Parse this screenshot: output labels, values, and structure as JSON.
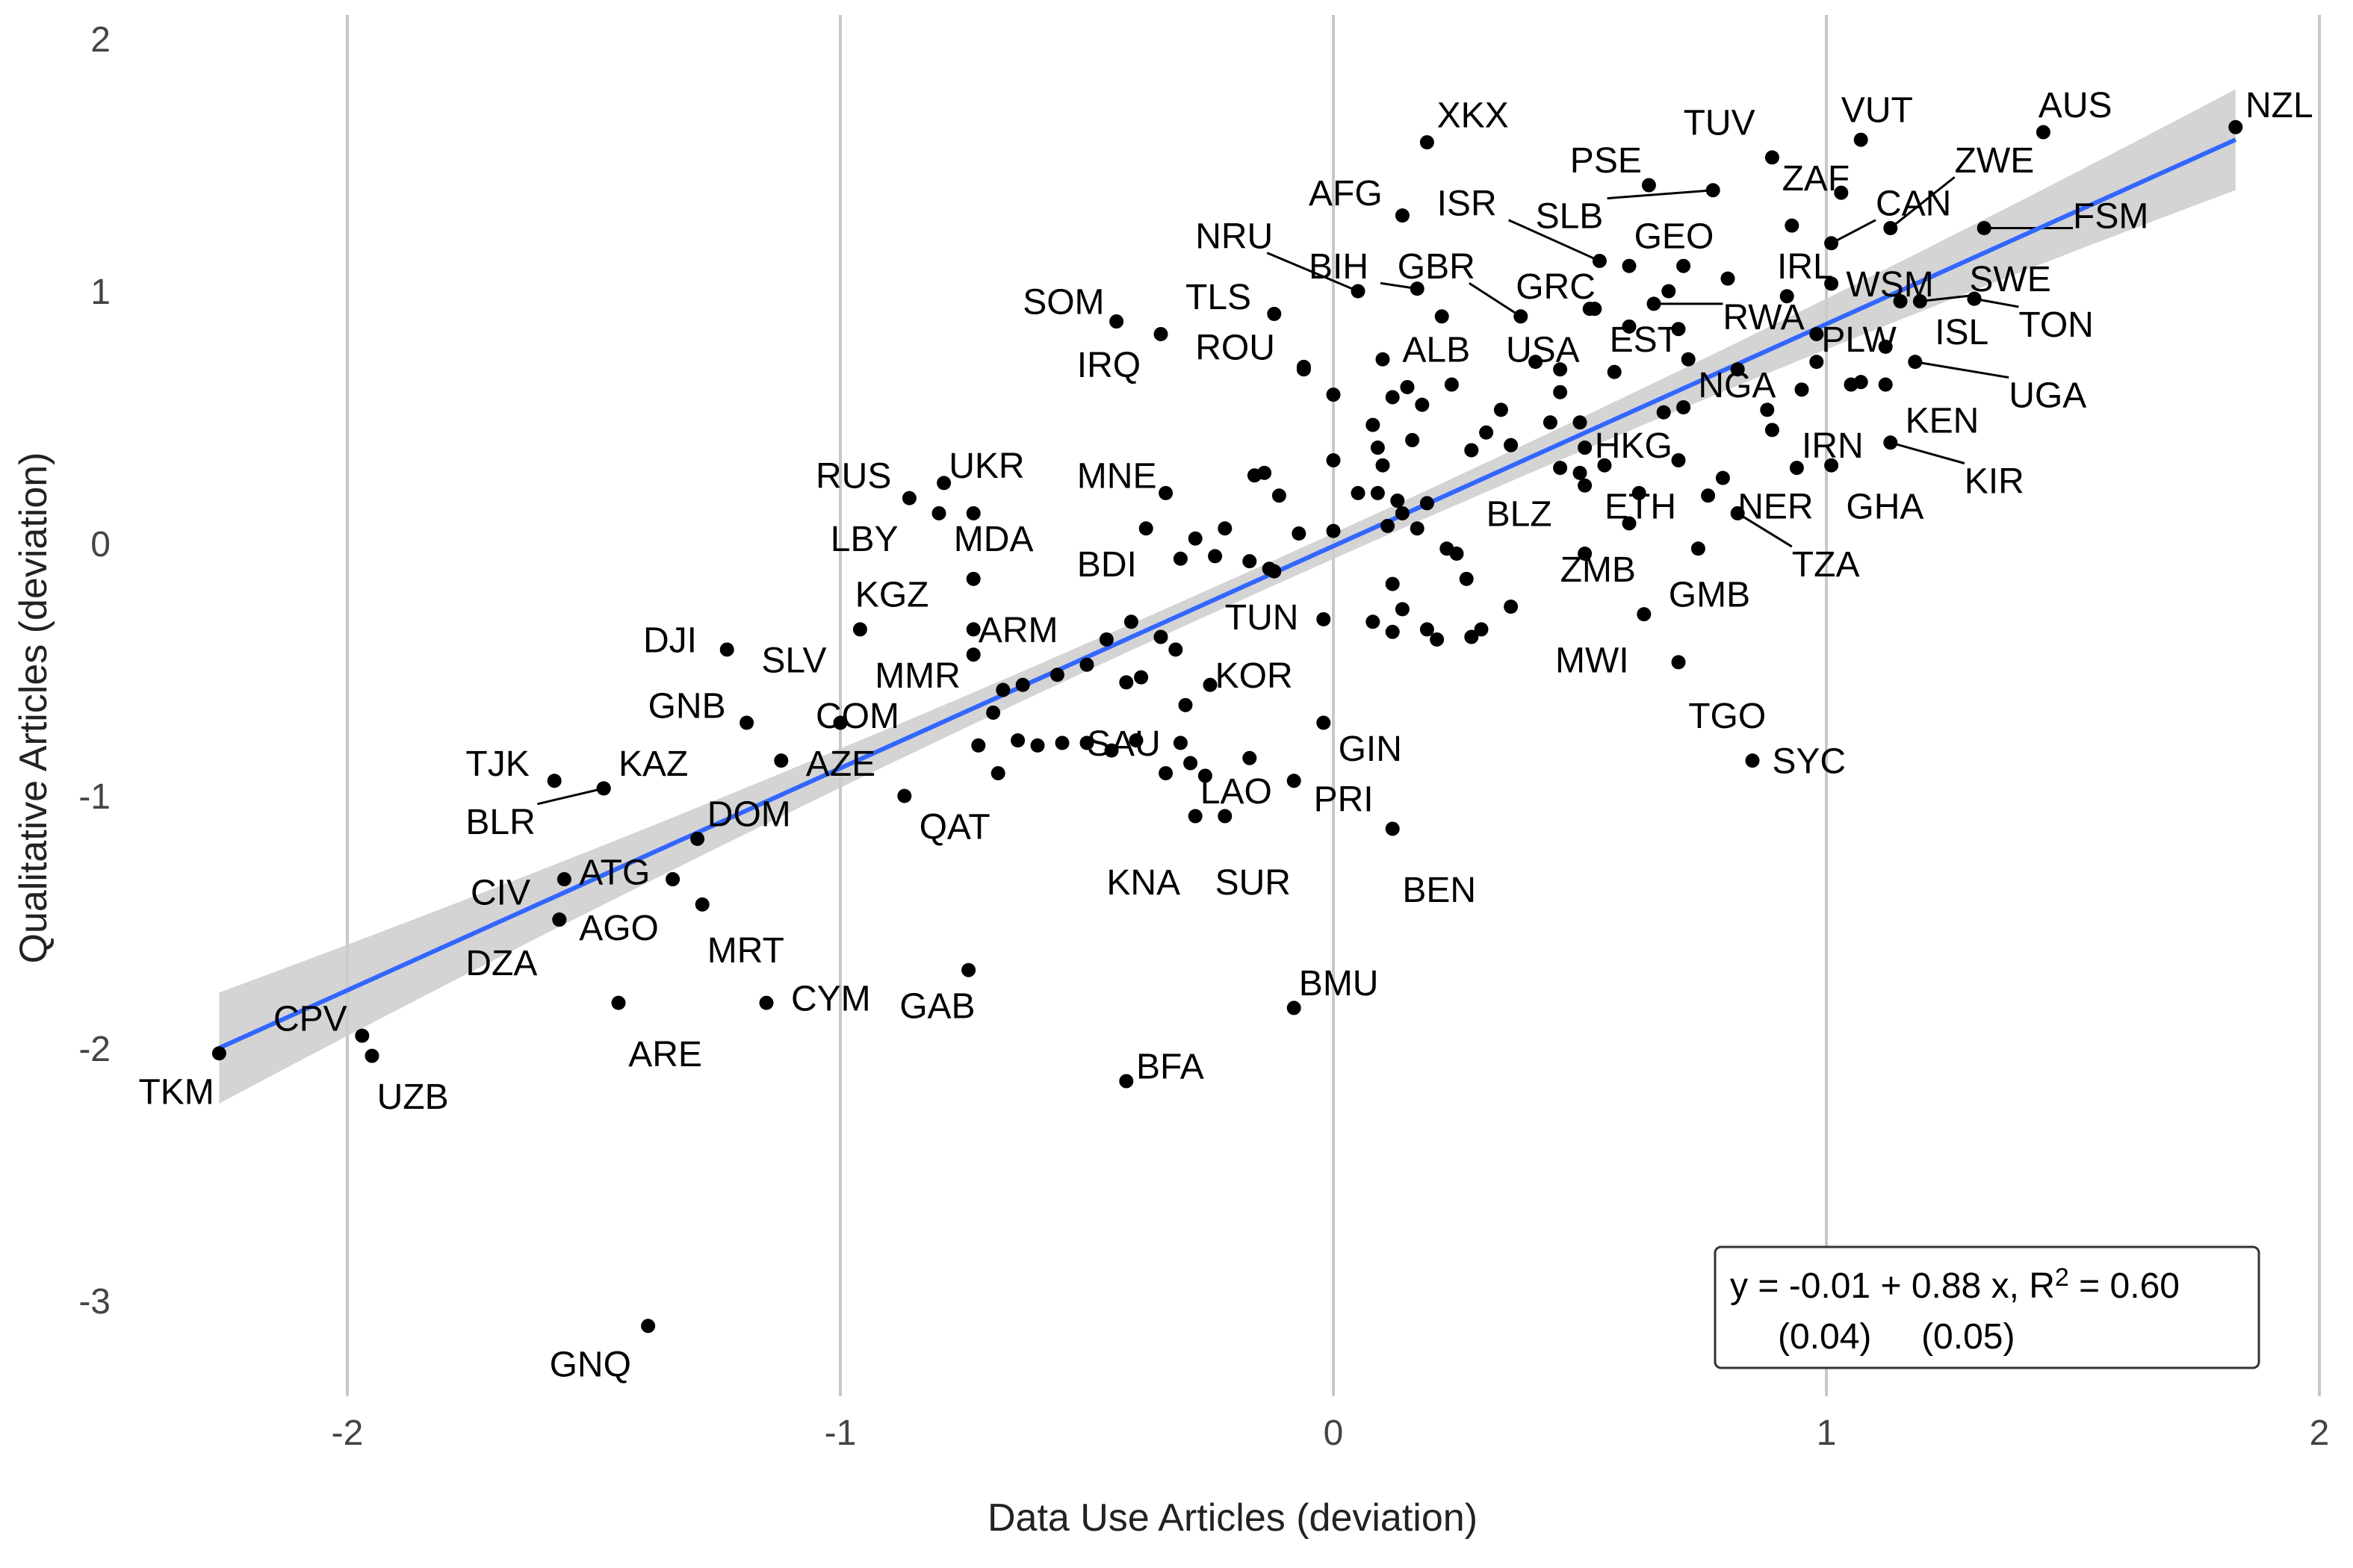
{
  "chart_data": {
    "type": "scatter",
    "xlabel": "Data Use Articles (deviation)",
    "ylabel": "Qualitative Articles (deviation)",
    "xlim": [
      -2.5,
      2.05
    ],
    "ylim": [
      -3.35,
      2.05
    ],
    "x_ticks": [
      -2,
      -1,
      0,
      1,
      2
    ],
    "y_ticks": [
      -3,
      -2,
      -1,
      0,
      1,
      2
    ],
    "x_tick_labels": [
      "-2",
      "-1",
      "0",
      "1",
      "2"
    ],
    "y_tick_labels": [
      "-3",
      "-2",
      "-1",
      "0",
      "1",
      "2"
    ],
    "grid": "vertical major",
    "fit": {
      "intercept": -0.01,
      "slope": 0.88,
      "x_range": [
        -2.26,
        1.83
      ],
      "line_color": "#3366ff",
      "band_color": "#cccccc",
      "band_halfwidth": [
        0.22,
        0.05,
        0.2
      ]
    },
    "annotation": {
      "line1_pre": "y = -0.01 + 0.88 x, R",
      "line1_sup": "2",
      "line1_post": " = 0.60",
      "line2": "(0.04)     (0.05)"
    },
    "point_color": "#000000",
    "labeled_points": [
      {
        "label": "NZL",
        "x": 1.83,
        "y": 1.65,
        "lx": 1.85,
        "ly": 1.74,
        "anchor": "start"
      },
      {
        "label": "AUS",
        "x": 1.44,
        "y": 1.63,
        "lx": 1.43,
        "ly": 1.74,
        "anchor": "start"
      },
      {
        "label": "VUT",
        "x": 1.07,
        "y": 1.6,
        "lx": 1.03,
        "ly": 1.72,
        "anchor": "start"
      },
      {
        "label": "TUV",
        "x": 0.89,
        "y": 1.53,
        "lx": 0.71,
        "ly": 1.67,
        "anchor": "start"
      },
      {
        "label": "XKX",
        "x": 0.19,
        "y": 1.59,
        "lx": 0.21,
        "ly": 1.7,
        "anchor": "start"
      },
      {
        "label": "PSE",
        "x": 0.64,
        "y": 1.42,
        "lx": 0.48,
        "ly": 1.52,
        "anchor": "start"
      },
      {
        "label": "ZAF",
        "x": 1.03,
        "y": 1.39,
        "lx": 0.91,
        "ly": 1.45,
        "anchor": "start"
      },
      {
        "label": "ZWE",
        "x": 1.13,
        "y": 1.25,
        "lx": 1.26,
        "ly": 1.52,
        "anchor": "start",
        "leader": true
      },
      {
        "label": "AFG",
        "x": 0.14,
        "y": 1.3,
        "lx": -0.05,
        "ly": 1.39,
        "anchor": "start"
      },
      {
        "label": "ISR",
        "x": 0.54,
        "y": 1.12,
        "lx": 0.21,
        "ly": 1.35,
        "anchor": "start",
        "leader": true
      },
      {
        "label": "SLB",
        "x": 0.77,
        "y": 1.4,
        "lx": 0.41,
        "ly": 1.3,
        "anchor": "start",
        "leader": true
      },
      {
        "label": "CAN",
        "x": 1.01,
        "y": 1.19,
        "lx": 1.1,
        "ly": 1.35,
        "anchor": "start",
        "leader": true
      },
      {
        "label": "FSM",
        "x": 1.32,
        "y": 1.25,
        "lx": 1.5,
        "ly": 1.3,
        "anchor": "start",
        "leader": true
      },
      {
        "label": "GEO",
        "x": 0.93,
        "y": 1.26,
        "lx": 0.61,
        "ly": 1.22,
        "anchor": "start"
      },
      {
        "label": "NRU",
        "x": 0.05,
        "y": 1.0,
        "lx": -0.28,
        "ly": 1.22,
        "anchor": "start",
        "leader": true
      },
      {
        "label": "IRL",
        "x": 1.01,
        "y": 1.03,
        "lx": 0.9,
        "ly": 1.1,
        "anchor": "start"
      },
      {
        "label": "BIH",
        "x": 0.17,
        "y": 1.01,
        "lx": -0.05,
        "ly": 1.1,
        "anchor": "start",
        "leader": true
      },
      {
        "label": "GBR",
        "x": 0.38,
        "y": 0.9,
        "lx": 0.13,
        "ly": 1.1,
        "anchor": "start",
        "leader": true
      },
      {
        "label": "WSM",
        "x": 1.15,
        "y": 0.96,
        "lx": 1.04,
        "ly": 1.03,
        "anchor": "start"
      },
      {
        "label": "SWE",
        "x": 1.19,
        "y": 0.96,
        "lx": 1.29,
        "ly": 1.05,
        "anchor": "start",
        "leader": true
      },
      {
        "label": "GRC",
        "x": 0.53,
        "y": 0.93,
        "lx": 0.37,
        "ly": 1.02,
        "anchor": "start"
      },
      {
        "label": "SOM",
        "x": -0.44,
        "y": 0.88,
        "lx": -0.63,
        "ly": 0.96,
        "anchor": "start"
      },
      {
        "label": "TLS",
        "x": -0.12,
        "y": 0.91,
        "lx": -0.3,
        "ly": 0.98,
        "anchor": "start"
      },
      {
        "label": "RWA",
        "x": 0.65,
        "y": 0.95,
        "lx": 0.79,
        "ly": 0.9,
        "anchor": "start",
        "leader": true
      },
      {
        "label": "ISL",
        "x": 1.3,
        "y": 0.97,
        "lx": 1.22,
        "ly": 0.84,
        "anchor": "start"
      },
      {
        "label": "TON",
        "x": 1.3,
        "y": 0.97,
        "lx": 1.39,
        "ly": 0.87,
        "anchor": "start",
        "leader": true
      },
      {
        "label": "IRQ",
        "x": -0.35,
        "y": 0.83,
        "lx": -0.52,
        "ly": 0.71,
        "anchor": "start"
      },
      {
        "label": "ROU",
        "x": -0.06,
        "y": 0.69,
        "lx": -0.28,
        "ly": 0.78,
        "anchor": "start"
      },
      {
        "label": "ALB",
        "x": 0.1,
        "y": 0.73,
        "lx": 0.14,
        "ly": 0.77,
        "anchor": "start"
      },
      {
        "label": "USA",
        "x": 0.46,
        "y": 0.69,
        "lx": 0.35,
        "ly": 0.77,
        "anchor": "start"
      },
      {
        "label": "EST",
        "x": 0.72,
        "y": 0.73,
        "lx": 0.56,
        "ly": 0.81,
        "anchor": "start"
      },
      {
        "label": "PLW",
        "x": 1.12,
        "y": 0.78,
        "lx": 0.99,
        "ly": 0.81,
        "anchor": "start"
      },
      {
        "label": "UGA",
        "x": 1.18,
        "y": 0.72,
        "lx": 1.37,
        "ly": 0.59,
        "anchor": "start",
        "leader": true
      },
      {
        "label": "NGA",
        "x": 0.71,
        "y": 0.54,
        "lx": 0.74,
        "ly": 0.63,
        "anchor": "start"
      },
      {
        "label": "KEN",
        "x": 1.12,
        "y": 0.63,
        "lx": 1.16,
        "ly": 0.49,
        "anchor": "start"
      },
      {
        "label": "HKG",
        "x": 0.51,
        "y": 0.38,
        "lx": 0.53,
        "ly": 0.39,
        "anchor": "start"
      },
      {
        "label": "IRN",
        "x": 0.89,
        "y": 0.45,
        "lx": 0.95,
        "ly": 0.39,
        "anchor": "start"
      },
      {
        "label": "KIR",
        "x": 1.13,
        "y": 0.4,
        "lx": 1.28,
        "ly": 0.25,
        "anchor": "start",
        "leader": true
      },
      {
        "label": "RUS",
        "x": -0.86,
        "y": 0.18,
        "lx": -1.05,
        "ly": 0.27,
        "anchor": "start"
      },
      {
        "label": "UKR",
        "x": -0.79,
        "y": 0.24,
        "lx": -0.78,
        "ly": 0.31,
        "anchor": "start"
      },
      {
        "label": "MNE",
        "x": -0.34,
        "y": 0.2,
        "lx": -0.52,
        "ly": 0.27,
        "anchor": "start"
      },
      {
        "label": "BLZ",
        "x": 0.51,
        "y": 0.23,
        "lx": 0.31,
        "ly": 0.12,
        "anchor": "start"
      },
      {
        "label": "ETH",
        "x": 0.6,
        "y": 0.08,
        "lx": 0.55,
        "ly": 0.15,
        "anchor": "start"
      },
      {
        "label": "NER",
        "x": 0.79,
        "y": 0.26,
        "lx": 0.82,
        "ly": 0.15,
        "anchor": "start"
      },
      {
        "label": "GHA",
        "x": 1.01,
        "y": 0.31,
        "lx": 1.04,
        "ly": 0.15,
        "anchor": "start"
      },
      {
        "label": "LBY",
        "x": -0.8,
        "y": 0.12,
        "lx": -1.02,
        "ly": 0.02,
        "anchor": "start"
      },
      {
        "label": "MDA",
        "x": -0.73,
        "y": 0.12,
        "lx": -0.77,
        "ly": 0.02,
        "anchor": "start"
      },
      {
        "label": "TZA",
        "x": 0.82,
        "y": 0.12,
        "lx": 0.93,
        "ly": -0.08,
        "anchor": "start",
        "leader": true
      },
      {
        "label": "BDI",
        "x": -0.38,
        "y": 0.06,
        "lx": -0.52,
        "ly": -0.08,
        "anchor": "start"
      },
      {
        "label": "ZMB",
        "x": 0.51,
        "y": -0.04,
        "lx": 0.46,
        "ly": -0.1,
        "anchor": "start"
      },
      {
        "label": "KGZ",
        "x": -0.73,
        "y": -0.14,
        "lx": -0.97,
        "ly": -0.2,
        "anchor": "start"
      },
      {
        "label": "GMB",
        "x": 0.74,
        "y": -0.02,
        "lx": 0.68,
        "ly": -0.2,
        "anchor": "start"
      },
      {
        "label": "TUN",
        "x": -0.13,
        "y": -0.1,
        "lx": -0.22,
        "ly": -0.29,
        "anchor": "start"
      },
      {
        "label": "ARM",
        "x": -0.73,
        "y": -0.34,
        "lx": -0.72,
        "ly": -0.34,
        "anchor": "start"
      },
      {
        "label": "DJI",
        "x": -1.23,
        "y": -0.42,
        "lx": -1.4,
        "ly": -0.38,
        "anchor": "start"
      },
      {
        "label": "SLV",
        "x": -0.96,
        "y": -0.34,
        "lx": -1.16,
        "ly": -0.46,
        "anchor": "start"
      },
      {
        "label": "MWI",
        "x": 0.63,
        "y": -0.28,
        "lx": 0.45,
        "ly": -0.46,
        "anchor": "start"
      },
      {
        "label": "MMR",
        "x": -0.73,
        "y": -0.44,
        "lx": -0.93,
        "ly": -0.52,
        "anchor": "start"
      },
      {
        "label": "KOR",
        "x": -0.25,
        "y": -0.56,
        "lx": -0.24,
        "ly": -0.52,
        "anchor": "start"
      },
      {
        "label": "TGO",
        "x": 0.7,
        "y": -0.47,
        "lx": 0.72,
        "ly": -0.68,
        "anchor": "start"
      },
      {
        "label": "GNB",
        "x": -1.19,
        "y": -0.71,
        "lx": -1.39,
        "ly": -0.64,
        "anchor": "start"
      },
      {
        "label": "COM",
        "x": -1.0,
        "y": -0.71,
        "lx": -1.05,
        "ly": -0.68,
        "anchor": "start"
      },
      {
        "label": "SAU",
        "x": -0.4,
        "y": -0.78,
        "lx": -0.5,
        "ly": -0.79,
        "anchor": "start"
      },
      {
        "label": "GIN",
        "x": -0.02,
        "y": -0.71,
        "lx": 0.01,
        "ly": -0.81,
        "anchor": "start"
      },
      {
        "label": "TJK",
        "x": -1.58,
        "y": -0.94,
        "lx": -1.76,
        "ly": -0.87,
        "anchor": "start"
      },
      {
        "label": "KAZ",
        "x": -1.48,
        "y": -0.97,
        "lx": -1.45,
        "ly": -0.87,
        "anchor": "start"
      },
      {
        "label": "AZE",
        "x": -1.12,
        "y": -0.86,
        "lx": -1.07,
        "ly": -0.87,
        "anchor": "start"
      },
      {
        "label": "SYC",
        "x": 0.85,
        "y": -0.86,
        "lx": 0.89,
        "ly": -0.86,
        "anchor": "start"
      },
      {
        "label": "LAO",
        "x": -0.17,
        "y": -0.85,
        "lx": -0.27,
        "ly": -0.98,
        "anchor": "start"
      },
      {
        "label": "PRI",
        "x": -0.08,
        "y": -0.94,
        "lx": -0.04,
        "ly": -1.01,
        "anchor": "start"
      },
      {
        "label": "BLR",
        "x": -1.48,
        "y": -0.97,
        "lx": -1.76,
        "ly": -1.1,
        "anchor": "start",
        "leader": true
      },
      {
        "label": "DOM",
        "x": -1.29,
        "y": -1.17,
        "lx": -1.27,
        "ly": -1.07,
        "anchor": "start"
      },
      {
        "label": "QAT",
        "x": -0.87,
        "y": -1.0,
        "lx": -0.84,
        "ly": -1.12,
        "anchor": "start"
      },
      {
        "label": "ATG",
        "x": -1.34,
        "y": -1.33,
        "lx": -1.53,
        "ly": -1.3,
        "anchor": "start"
      },
      {
        "label": "KNA",
        "x": -0.28,
        "y": -1.08,
        "lx": -0.46,
        "ly": -1.34,
        "anchor": "start"
      },
      {
        "label": "SUR",
        "x": -0.22,
        "y": -1.08,
        "lx": -0.24,
        "ly": -1.34,
        "anchor": "start"
      },
      {
        "label": "BEN",
        "x": 0.12,
        "y": -1.13,
        "lx": 0.14,
        "ly": -1.37,
        "anchor": "start"
      },
      {
        "label": "CIV",
        "x": -1.56,
        "y": -1.33,
        "lx": -1.75,
        "ly": -1.38,
        "anchor": "start"
      },
      {
        "label": "AGO",
        "x": -1.57,
        "y": -1.49,
        "lx": -1.53,
        "ly": -1.52,
        "anchor": "start"
      },
      {
        "label": "MRT",
        "x": -1.28,
        "y": -1.43,
        "lx": -1.27,
        "ly": -1.61,
        "anchor": "start"
      },
      {
        "label": "DZA",
        "x": -1.57,
        "y": -1.49,
        "lx": -1.76,
        "ly": -1.66,
        "anchor": "start"
      },
      {
        "label": "BMU",
        "x": -0.08,
        "y": -1.84,
        "lx": -0.07,
        "ly": -1.74,
        "anchor": "start"
      },
      {
        "label": "CYM",
        "x": -1.15,
        "y": -1.82,
        "lx": -1.1,
        "ly": -1.8,
        "anchor": "start"
      },
      {
        "label": "GAB",
        "x": -0.74,
        "y": -1.69,
        "lx": -0.88,
        "ly": -1.83,
        "anchor": "start"
      },
      {
        "label": "CPV",
        "x": -1.97,
        "y": -1.95,
        "lx": -2.15,
        "ly": -1.88,
        "anchor": "start"
      },
      {
        "label": "ARE",
        "x": -1.45,
        "y": -1.82,
        "lx": -1.43,
        "ly": -2.02,
        "anchor": "start"
      },
      {
        "label": "BFA",
        "x": -0.42,
        "y": -2.13,
        "lx": -0.4,
        "ly": -2.07,
        "anchor": "start"
      },
      {
        "label": "TKM",
        "x": -2.26,
        "y": -2.02,
        "lx": -2.27,
        "ly": -2.17,
        "anchor": "end"
      },
      {
        "label": "UZB",
        "x": -1.95,
        "y": -2.03,
        "lx": -1.94,
        "ly": -2.19,
        "anchor": "start"
      },
      {
        "label": "GNQ",
        "x": -1.39,
        "y": -3.1,
        "lx": -1.59,
        "ly": -3.25,
        "anchor": "start"
      }
    ],
    "unlabeled_points": [
      [
        0.6,
        1.1
      ],
      [
        0.71,
        1.1
      ],
      [
        0.68,
        1.0
      ],
      [
        0.8,
        1.05
      ],
      [
        0.92,
        0.98
      ],
      [
        0.22,
        0.9
      ],
      [
        0.52,
        0.93
      ],
      [
        0.6,
        0.86
      ],
      [
        0.7,
        0.85
      ],
      [
        0.98,
        0.83
      ],
      [
        -0.06,
        0.7
      ],
      [
        0.0,
        0.59
      ],
      [
        0.15,
        0.62
      ],
      [
        0.24,
        0.63
      ],
      [
        0.41,
        0.72
      ],
      [
        0.57,
        0.68
      ],
      [
        0.82,
        0.69
      ],
      [
        0.98,
        0.72
      ],
      [
        1.07,
        0.64
      ],
      [
        0.12,
        0.58
      ],
      [
        0.18,
        0.55
      ],
      [
        0.34,
        0.53
      ],
      [
        0.46,
        0.6
      ],
      [
        0.5,
        0.48
      ],
      [
        0.67,
        0.52
      ],
      [
        0.88,
        0.53
      ],
      [
        0.95,
        0.61
      ],
      [
        1.05,
        0.63
      ],
      [
        0.08,
        0.47
      ],
      [
        0.16,
        0.41
      ],
      [
        0.31,
        0.44
      ],
      [
        0.36,
        0.39
      ],
      [
        0.44,
        0.48
      ],
      [
        -0.14,
        0.28
      ],
      [
        0.0,
        0.33
      ],
      [
        0.09,
        0.38
      ],
      [
        0.1,
        0.31
      ],
      [
        0.28,
        0.37
      ],
      [
        0.46,
        0.3
      ],
      [
        0.55,
        0.31
      ],
      [
        0.7,
        0.33
      ],
      [
        0.94,
        0.3
      ],
      [
        -0.16,
        0.27
      ],
      [
        -0.11,
        0.19
      ],
      [
        0.05,
        0.2
      ],
      [
        0.09,
        0.2
      ],
      [
        0.13,
        0.17
      ],
      [
        0.19,
        0.16
      ],
      [
        0.5,
        0.28
      ],
      [
        0.62,
        0.2
      ],
      [
        0.76,
        0.19
      ],
      [
        -0.22,
        0.06
      ],
      [
        -0.28,
        0.02
      ],
      [
        -0.07,
        0.04
      ],
      [
        0.0,
        0.05
      ],
      [
        0.11,
        0.07
      ],
      [
        0.17,
        0.06
      ],
      [
        0.14,
        0.12
      ],
      [
        0.23,
        -0.02
      ],
      [
        -0.31,
        -0.06
      ],
      [
        -0.24,
        -0.05
      ],
      [
        -0.17,
        -0.07
      ],
      [
        -0.12,
        -0.11
      ],
      [
        0.25,
        -0.04
      ],
      [
        0.27,
        -0.14
      ],
      [
        -0.41,
        -0.31
      ],
      [
        -0.35,
        -0.37
      ],
      [
        -0.32,
        -0.42
      ],
      [
        -0.02,
        -0.3
      ],
      [
        0.08,
        -0.31
      ],
      [
        0.12,
        -0.16
      ],
      [
        0.14,
        -0.26
      ],
      [
        0.19,
        -0.34
      ],
      [
        0.21,
        -0.38
      ],
      [
        0.28,
        -0.37
      ],
      [
        0.3,
        -0.34
      ],
      [
        0.36,
        -0.25
      ],
      [
        0.12,
        -0.35
      ],
      [
        -0.63,
        -0.56
      ],
      [
        -0.67,
        -0.58
      ],
      [
        -0.69,
        -0.67
      ],
      [
        -0.56,
        -0.52
      ],
      [
        -0.5,
        -0.48
      ],
      [
        -0.46,
        -0.38
      ],
      [
        -0.42,
        -0.55
      ],
      [
        -0.39,
        -0.53
      ],
      [
        -0.3,
        -0.64
      ],
      [
        -0.64,
        -0.78
      ],
      [
        -0.6,
        -0.8
      ],
      [
        -0.55,
        -0.79
      ],
      [
        -0.5,
        -0.79
      ],
      [
        -0.45,
        -0.82
      ],
      [
        -0.31,
        -0.79
      ],
      [
        -0.29,
        -0.87
      ],
      [
        -0.26,
        -0.92
      ],
      [
        -0.68,
        -0.91
      ],
      [
        -0.72,
        -0.8
      ],
      [
        -0.34,
        -0.91
      ]
    ]
  }
}
